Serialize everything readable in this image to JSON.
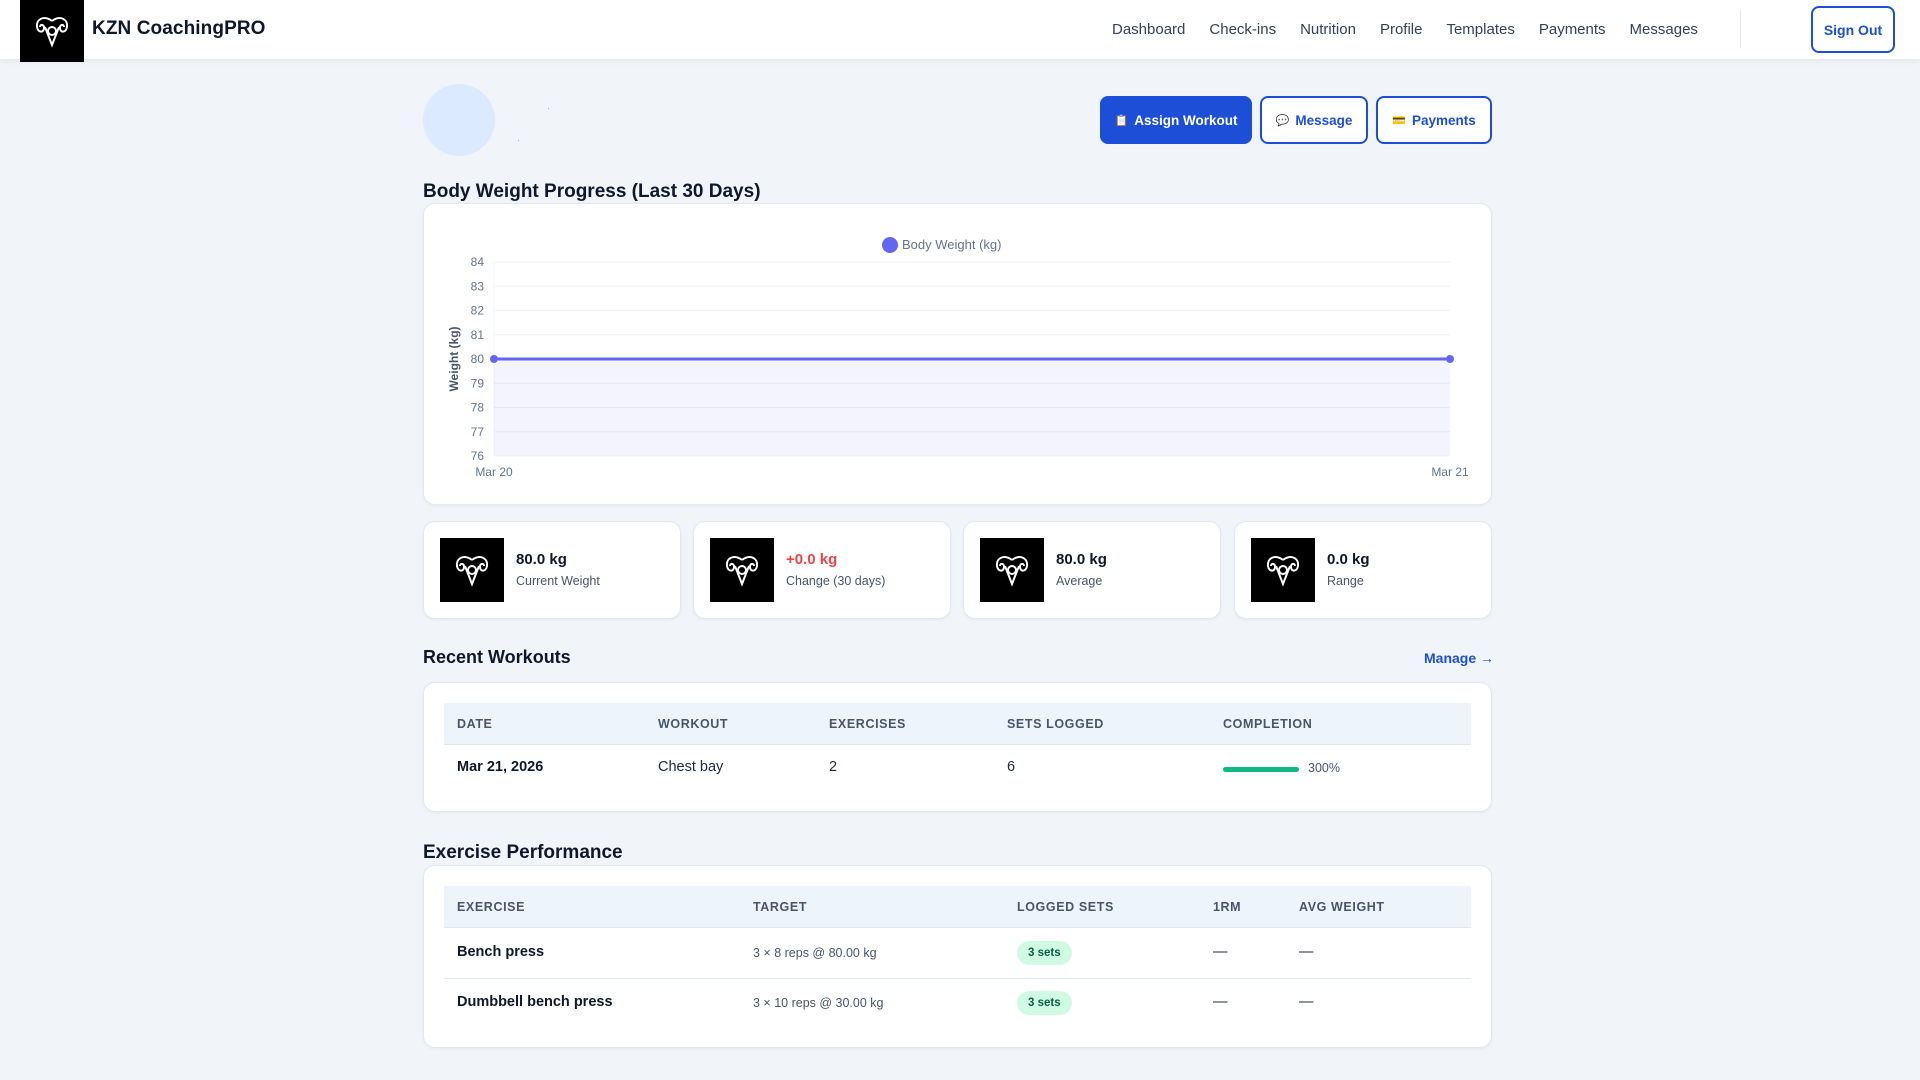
{
  "app": {
    "brand": "KZN CoachingPRO",
    "logo_icon": "ram-logo-icon"
  },
  "nav": {
    "items": [
      "Dashboard",
      "Check-ins",
      "Nutrition",
      "Profile",
      "Templates",
      "Payments",
      "Messages"
    ],
    "sign_out": "Sign Out"
  },
  "actions": {
    "assign_workout": "Assign Workout",
    "assign_icon": "clipboard-icon",
    "message": "Message",
    "message_icon": "speech-bubble-icon",
    "payments": "Payments",
    "payments_icon": "credit-card-icon"
  },
  "weight_section": {
    "title": "Body Weight Progress (Last 30 Days)"
  },
  "chart_data": {
    "type": "line",
    "title": "",
    "x": [
      "Mar 20",
      "Mar 21"
    ],
    "series": [
      {
        "name": "Body Weight (kg)",
        "values": [
          80,
          80
        ],
        "color": "#6366f1"
      }
    ],
    "xlabel": "",
    "ylabel": "Weight (kg)",
    "ylim": [
      76,
      84
    ],
    "yticks": [
      "84",
      "83",
      "82",
      "81",
      "80",
      "79",
      "78",
      "77",
      "76"
    ],
    "legend": "top-center",
    "grid": true,
    "area_fill": true
  },
  "stats": [
    {
      "value": "80.0 kg",
      "label": "Current Weight",
      "color": "#0f172a"
    },
    {
      "value": "+0.0 kg",
      "label": "Change (30 days)",
      "color": "#ef4444"
    },
    {
      "value": "80.0 kg",
      "label": "Average",
      "color": "#0f172a"
    },
    {
      "value": "0.0 kg",
      "label": "Range",
      "color": "#0f172a"
    }
  ],
  "recent_workouts": {
    "title": "Recent Workouts",
    "manage": "Manage →",
    "columns": [
      "Date",
      "Workout",
      "Exercises",
      "Sets Logged",
      "Completion"
    ],
    "rows": [
      {
        "date": "Mar 21, 2026",
        "workout": "Chest bay",
        "exercises": "2",
        "sets": "6",
        "completion": "300%",
        "completion_fraction": 1.0
      }
    ]
  },
  "exercise_performance": {
    "title": "Exercise Performance",
    "columns": [
      "Exercise",
      "Target",
      "Logged Sets",
      "1RM",
      "Avg Weight"
    ],
    "rows": [
      {
        "exercise": "Bench press",
        "target": "3 × 8 reps @ 80.00 kg",
        "logged": "3 sets",
        "rm": "—",
        "avg": "—"
      },
      {
        "exercise": "Dumbbell bench press",
        "target": "3 × 10 reps @ 30.00 kg",
        "logged": "3 sets",
        "rm": "—",
        "avg": "—"
      }
    ]
  }
}
